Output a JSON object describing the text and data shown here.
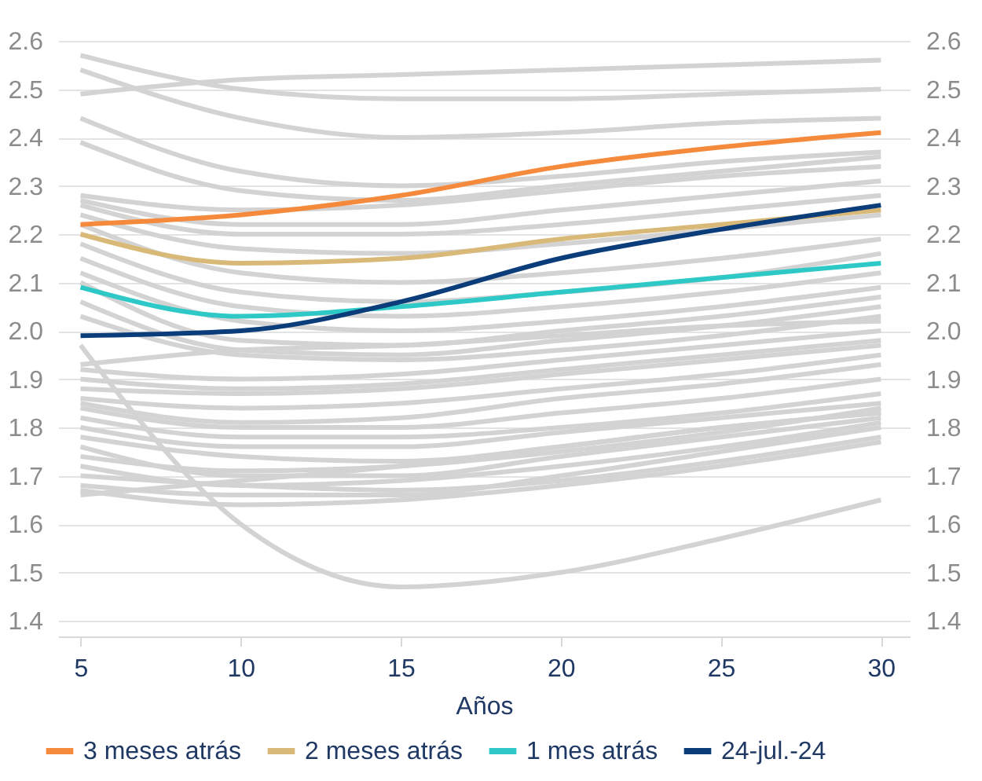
{
  "chart_data": {
    "type": "line",
    "xlabel": "Años",
    "x": [
      5,
      10,
      15,
      20,
      25,
      30
    ],
    "xlim": [
      4.3,
      30.9
    ],
    "xticks": [
      5,
      10,
      15,
      20,
      25,
      30
    ],
    "ylim": [
      1.4,
      2.6
    ],
    "yticks": [
      1.4,
      1.5,
      1.6,
      1.7,
      1.8,
      1.9,
      {
        "value": 2.0,
        "label": "2.0"
      },
      2.1,
      2.2,
      2.3,
      2.4,
      2.5,
      2.6
    ],
    "y2lim": [
      1.4,
      2.6
    ],
    "y2ticks": [
      1.4,
      1.5,
      1.6,
      1.7,
      1.8,
      1.9,
      {
        "value": 2.0,
        "label": "2.0"
      },
      2.1,
      2.2,
      2.3,
      2.4,
      2.5,
      2.6
    ],
    "grid": "y",
    "legend": "bottom",
    "marker": "none",
    "line_style": "solid",
    "series": [
      {
        "color": "#d3d3d3",
        "values": [
          2.49,
          2.52,
          2.53,
          2.54,
          2.55,
          2.56
        ]
      },
      {
        "color": "#d3d3d3",
        "values": [
          2.57,
          2.5,
          2.48,
          2.48,
          2.49,
          2.5
        ]
      },
      {
        "color": "#d3d3d3",
        "values": [
          2.54,
          2.44,
          2.4,
          2.41,
          2.43,
          2.44
        ]
      },
      {
        "color": "#d3d3d3",
        "values": [
          2.44,
          2.33,
          2.3,
          2.32,
          2.35,
          2.37
        ]
      },
      {
        "color": "#d3d3d3",
        "values": [
          2.39,
          2.29,
          2.27,
          2.3,
          2.33,
          2.36
        ]
      },
      {
        "color": "#d3d3d3",
        "values": [
          1.97,
          1.6,
          1.47,
          1.5,
          1.57,
          1.65
        ]
      },
      {
        "color": "#d3d3d3",
        "values": [
          2.28,
          2.25,
          2.26,
          2.29,
          2.32,
          2.34
        ]
      },
      {
        "color": "#d3d3d3",
        "values": [
          2.27,
          2.22,
          2.22,
          2.25,
          2.28,
          2.31
        ]
      },
      {
        "color": "#d3d3d3",
        "values": [
          2.26,
          2.2,
          2.2,
          2.22,
          2.25,
          2.28
        ]
      },
      {
        "color": "#d3d3d3",
        "values": [
          2.24,
          2.17,
          2.16,
          2.18,
          2.21,
          2.24
        ]
      },
      {
        "color": "#d3d3d3",
        "values": [
          2.22,
          2.12,
          2.1,
          2.12,
          2.15,
          2.19
        ]
      },
      {
        "color": "#d3d3d3",
        "values": [
          2.18,
          2.08,
          2.06,
          2.08,
          2.11,
          2.16
        ]
      },
      {
        "color": "#d3d3d3",
        "values": [
          2.15,
          2.05,
          2.03,
          2.05,
          2.08,
          2.12
        ]
      },
      {
        "color": "#d3d3d3",
        "values": [
          2.12,
          2.02,
          2.0,
          2.02,
          2.05,
          2.09
        ]
      },
      {
        "color": "#d3d3d3",
        "values": [
          2.1,
          1.98,
          1.97,
          2.0,
          2.03,
          2.07
        ]
      },
      {
        "color": "#d3d3d3",
        "values": [
          2.06,
          1.96,
          1.95,
          1.98,
          2.01,
          2.05
        ]
      },
      {
        "color": "#d3d3d3",
        "values": [
          2.03,
          1.95,
          1.94,
          1.96,
          1.99,
          2.03
        ]
      },
      {
        "color": "#d3d3d3",
        "values": [
          1.93,
          1.96,
          1.97,
          1.99,
          2.01,
          2.02
        ]
      },
      {
        "color": "#d3d3d3",
        "values": [
          1.92,
          1.9,
          1.91,
          1.94,
          1.97,
          2.0
        ]
      },
      {
        "color": "#d3d3d3",
        "values": [
          1.9,
          1.88,
          1.89,
          1.92,
          1.95,
          1.98
        ]
      },
      {
        "color": "#d3d3d3",
        "values": [
          1.88,
          1.87,
          1.88,
          1.91,
          1.94,
          1.97
        ]
      },
      {
        "color": "#d3d3d3",
        "values": [
          1.86,
          1.84,
          1.85,
          1.88,
          1.91,
          1.95
        ]
      },
      {
        "color": "#d3d3d3",
        "values": [
          1.85,
          1.81,
          1.82,
          1.86,
          1.89,
          1.93
        ]
      },
      {
        "color": "#d3d3d3",
        "values": [
          1.84,
          1.8,
          1.8,
          1.83,
          1.86,
          1.9
        ]
      },
      {
        "color": "#d3d3d3",
        "values": [
          1.82,
          1.78,
          1.78,
          1.8,
          1.83,
          1.87
        ]
      },
      {
        "color": "#d3d3d3",
        "values": [
          1.8,
          1.76,
          1.76,
          1.79,
          1.82,
          1.85
        ]
      },
      {
        "color": "#d3d3d3",
        "values": [
          1.78,
          1.74,
          1.73,
          1.76,
          1.8,
          1.83
        ]
      },
      {
        "color": "#d3d3d3",
        "values": [
          1.76,
          1.7,
          1.7,
          1.74,
          1.78,
          1.82
        ]
      },
      {
        "color": "#d3d3d3",
        "values": [
          1.74,
          1.71,
          1.72,
          1.75,
          1.79,
          1.84
        ]
      },
      {
        "color": "#d3d3d3",
        "values": [
          1.72,
          1.68,
          1.69,
          1.72,
          1.76,
          1.81
        ]
      },
      {
        "color": "#d3d3d3",
        "values": [
          1.7,
          1.68,
          1.67,
          1.69,
          1.73,
          1.78
        ]
      },
      {
        "color": "#d3d3d3",
        "values": [
          1.68,
          1.66,
          1.66,
          1.7,
          1.75,
          1.8
        ]
      },
      {
        "color": "#d3d3d3",
        "values": [
          1.66,
          1.69,
          1.72,
          1.76,
          1.8,
          1.83
        ]
      },
      {
        "color": "#d3d3d3",
        "values": [
          1.67,
          1.64,
          1.65,
          1.68,
          1.72,
          1.77
        ]
      },
      {
        "name": "3 meses atrás",
        "color": "#f58a3c",
        "values": [
          2.22,
          2.24,
          2.28,
          2.34,
          2.38,
          2.41
        ]
      },
      {
        "name": "2 meses atrás",
        "color": "#d9b978",
        "values": [
          2.2,
          2.14,
          2.15,
          2.19,
          2.22,
          2.25
        ]
      },
      {
        "name": "1 mes atrás",
        "color": "#2ec9c6",
        "values": [
          2.09,
          2.03,
          2.05,
          2.08,
          2.11,
          2.14
        ]
      },
      {
        "name": "24-jul.-24",
        "color": "#0b3d7a",
        "values": [
          1.99,
          2.0,
          2.06,
          2.15,
          2.21,
          2.26
        ]
      }
    ]
  }
}
